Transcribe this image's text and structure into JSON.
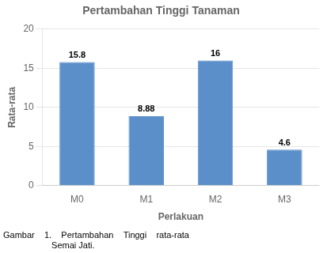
{
  "chart_data": {
    "type": "bar",
    "title": "Pertambahan Tinggi Tanaman",
    "xlabel": "Perlakuan",
    "ylabel": "Rata-rata",
    "categories": [
      "M0",
      "M1",
      "M2",
      "M3"
    ],
    "values": [
      15.8,
      8.88,
      16,
      4.6
    ],
    "color": "#5b8fc9",
    "ylim": [
      0,
      20
    ],
    "yticks": [
      0,
      5,
      10,
      15,
      20
    ],
    "grid": true,
    "data_labels": true,
    "caption": "Gambar    1.    Pertambahan    Tinggi    rata-rata\n                    Semai Jati."
  }
}
